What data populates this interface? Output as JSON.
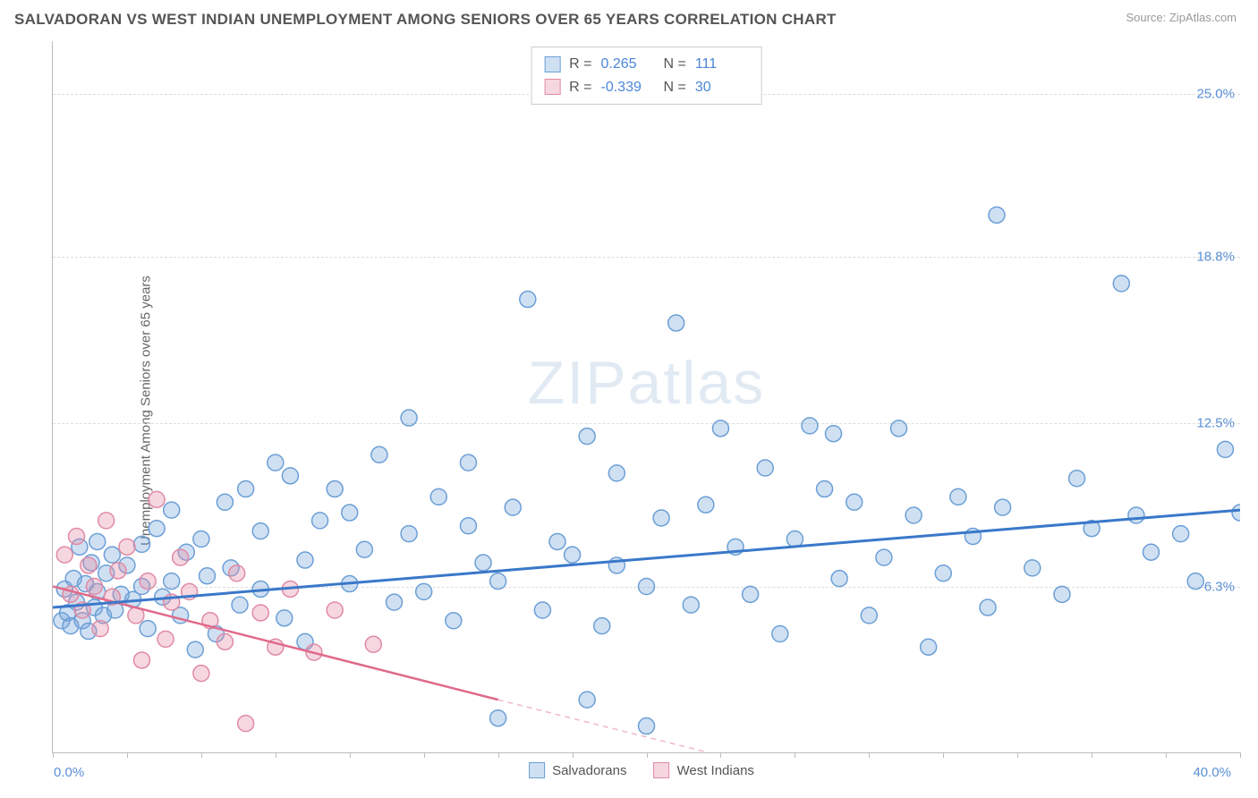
{
  "title": "SALVADORAN VS WEST INDIAN UNEMPLOYMENT AMONG SENIORS OVER 65 YEARS CORRELATION CHART",
  "source": "Source: ZipAtlas.com",
  "ylabel": "Unemployment Among Seniors over 65 years",
  "watermark_zip": "ZIP",
  "watermark_atlas": "atlas",
  "chart": {
    "type": "scatter",
    "xlim": [
      0,
      40
    ],
    "ylim": [
      0,
      27
    ],
    "xticks": [
      0,
      2.5,
      5,
      7.5,
      10,
      12.5,
      15,
      17.5,
      20,
      22.5,
      25,
      27.5,
      30,
      32.5,
      35,
      37.5,
      40
    ],
    "ygrid": [
      6.3,
      12.5,
      18.8,
      25.0
    ],
    "ytick_labels": [
      "6.3%",
      "12.5%",
      "18.8%",
      "25.0%"
    ],
    "xmin_label": "0.0%",
    "xmax_label": "40.0%",
    "background_color": "#ffffff",
    "grid_color": "#dddddd",
    "axis_color": "#bbbbbb",
    "label_color": "#5a8fd6",
    "marker_radius": 9,
    "marker_stroke_width": 1.5,
    "series": [
      {
        "name": "Salvadorans",
        "fill": "rgba(120,165,220,0.35)",
        "stroke": "#6b9fd6",
        "r_value": "0.265",
        "n_value": "111",
        "trend": {
          "x1": 0,
          "y1": 5.5,
          "x2": 40,
          "y2": 9.2,
          "color": "#3a78c9",
          "width": 3
        },
        "points": [
          [
            0.3,
            5.0
          ],
          [
            0.4,
            6.2
          ],
          [
            0.5,
            5.3
          ],
          [
            0.6,
            4.8
          ],
          [
            0.7,
            6.6
          ],
          [
            0.8,
            5.7
          ],
          [
            0.9,
            7.8
          ],
          [
            1.0,
            5.0
          ],
          [
            1.1,
            6.4
          ],
          [
            1.2,
            4.6
          ],
          [
            1.3,
            7.2
          ],
          [
            1.4,
            5.5
          ],
          [
            1.5,
            8.0
          ],
          [
            1.5,
            6.1
          ],
          [
            1.7,
            5.2
          ],
          [
            1.8,
            6.8
          ],
          [
            2.0,
            7.5
          ],
          [
            2.1,
            5.4
          ],
          [
            2.3,
            6.0
          ],
          [
            2.5,
            7.1
          ],
          [
            2.7,
            5.8
          ],
          [
            3.0,
            7.9
          ],
          [
            3.0,
            6.3
          ],
          [
            3.2,
            4.7
          ],
          [
            3.5,
            8.5
          ],
          [
            3.7,
            5.9
          ],
          [
            4.0,
            6.5
          ],
          [
            4.0,
            9.2
          ],
          [
            4.3,
            5.2
          ],
          [
            4.5,
            7.6
          ],
          [
            4.8,
            3.9
          ],
          [
            5.0,
            8.1
          ],
          [
            5.2,
            6.7
          ],
          [
            5.5,
            4.5
          ],
          [
            5.8,
            9.5
          ],
          [
            6.0,
            7.0
          ],
          [
            6.3,
            5.6
          ],
          [
            6.5,
            10.0
          ],
          [
            7.0,
            6.2
          ],
          [
            7.0,
            8.4
          ],
          [
            7.5,
            11.0
          ],
          [
            7.8,
            5.1
          ],
          [
            8.0,
            10.5
          ],
          [
            8.5,
            7.3
          ],
          [
            8.5,
            4.2
          ],
          [
            9.0,
            8.8
          ],
          [
            9.5,
            10.0
          ],
          [
            10.0,
            6.4
          ],
          [
            10.0,
            9.1
          ],
          [
            10.5,
            7.7
          ],
          [
            11.0,
            11.3
          ],
          [
            11.5,
            5.7
          ],
          [
            12.0,
            8.3
          ],
          [
            12.0,
            12.7
          ],
          [
            12.5,
            6.1
          ],
          [
            13.0,
            9.7
          ],
          [
            13.5,
            5.0
          ],
          [
            14.0,
            8.6
          ],
          [
            14.0,
            11.0
          ],
          [
            14.5,
            7.2
          ],
          [
            15.0,
            6.5
          ],
          [
            15.0,
            1.3
          ],
          [
            15.5,
            9.3
          ],
          [
            16.0,
            17.2
          ],
          [
            16.5,
            5.4
          ],
          [
            17.0,
            8.0
          ],
          [
            17.5,
            7.5
          ],
          [
            18.0,
            12.0
          ],
          [
            18.5,
            4.8
          ],
          [
            19.0,
            10.6
          ],
          [
            19.0,
            7.1
          ],
          [
            20.0,
            6.3
          ],
          [
            20.0,
            1.0
          ],
          [
            20.5,
            8.9
          ],
          [
            21.0,
            16.3
          ],
          [
            21.5,
            5.6
          ],
          [
            22.0,
            9.4
          ],
          [
            22.5,
            12.3
          ],
          [
            23.0,
            7.8
          ],
          [
            23.5,
            6.0
          ],
          [
            24.0,
            10.8
          ],
          [
            24.5,
            4.5
          ],
          [
            25.0,
            8.1
          ],
          [
            25.5,
            12.4
          ],
          [
            26.0,
            10.0
          ],
          [
            26.3,
            12.1
          ],
          [
            26.5,
            6.6
          ],
          [
            27.0,
            9.5
          ],
          [
            27.5,
            5.2
          ],
          [
            28.0,
            7.4
          ],
          [
            28.5,
            12.3
          ],
          [
            29.0,
            9.0
          ],
          [
            29.5,
            4.0
          ],
          [
            30.0,
            6.8
          ],
          [
            30.5,
            9.7
          ],
          [
            31.0,
            8.2
          ],
          [
            31.5,
            5.5
          ],
          [
            31.8,
            20.4
          ],
          [
            32.0,
            9.3
          ],
          [
            33.0,
            7.0
          ],
          [
            34.0,
            6.0
          ],
          [
            34.5,
            10.4
          ],
          [
            35.0,
            8.5
          ],
          [
            36.0,
            17.8
          ],
          [
            36.5,
            9.0
          ],
          [
            37.0,
            7.6
          ],
          [
            38.0,
            8.3
          ],
          [
            38.5,
            6.5
          ],
          [
            39.5,
            11.5
          ],
          [
            40.0,
            9.1
          ],
          [
            18.0,
            2.0
          ]
        ]
      },
      {
        "name": "West Indians",
        "fill": "rgba(230,140,165,0.35)",
        "stroke": "#e08aa5",
        "r_value": "-0.339",
        "n_value": "30",
        "trend": {
          "x1": 0,
          "y1": 6.3,
          "x2": 15,
          "y2": 2.0,
          "color": "#e06a8a",
          "width": 2.5
        },
        "trend_dash": {
          "x1": 15,
          "y1": 2.0,
          "x2": 27,
          "y2": -1.4,
          "color": "#f0b8c8",
          "width": 1.5
        },
        "points": [
          [
            0.4,
            7.5
          ],
          [
            0.6,
            6.0
          ],
          [
            0.8,
            8.2
          ],
          [
            1.0,
            5.4
          ],
          [
            1.2,
            7.1
          ],
          [
            1.4,
            6.3
          ],
          [
            1.6,
            4.7
          ],
          [
            1.8,
            8.8
          ],
          [
            2.0,
            5.9
          ],
          [
            2.2,
            6.9
          ],
          [
            2.5,
            7.8
          ],
          [
            2.8,
            5.2
          ],
          [
            3.0,
            3.5
          ],
          [
            3.2,
            6.5
          ],
          [
            3.5,
            9.6
          ],
          [
            3.8,
            4.3
          ],
          [
            4.0,
            5.7
          ],
          [
            4.3,
            7.4
          ],
          [
            4.6,
            6.1
          ],
          [
            5.0,
            3.0
          ],
          [
            5.3,
            5.0
          ],
          [
            5.8,
            4.2
          ],
          [
            6.2,
            6.8
          ],
          [
            6.5,
            1.1
          ],
          [
            7.0,
            5.3
          ],
          [
            7.5,
            4.0
          ],
          [
            8.0,
            6.2
          ],
          [
            8.8,
            3.8
          ],
          [
            9.5,
            5.4
          ],
          [
            10.8,
            4.1
          ]
        ]
      }
    ],
    "legend": {
      "stats_r_label": "R =",
      "stats_n_label": "N ="
    }
  }
}
